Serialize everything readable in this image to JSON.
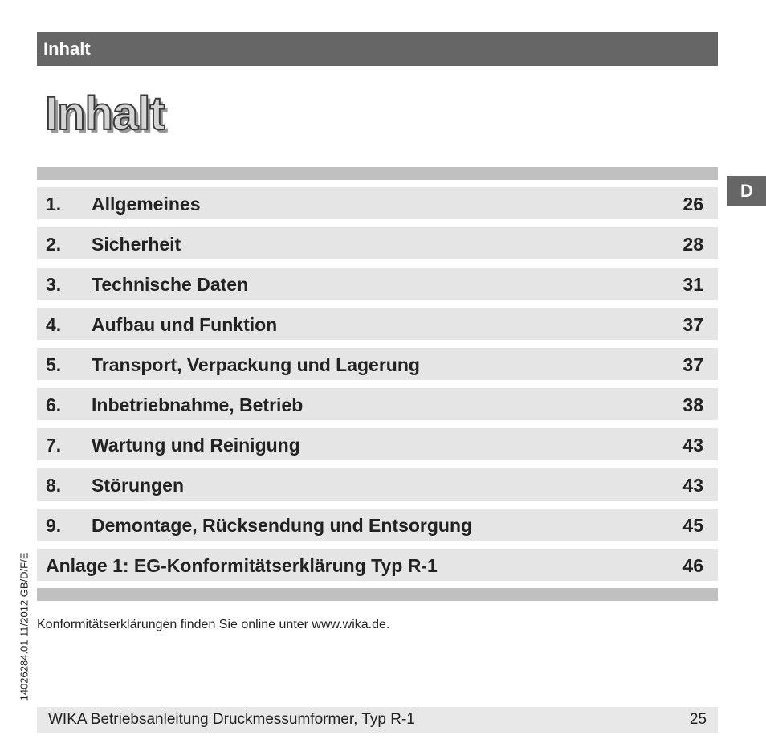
{
  "header": {
    "label": "Inhalt"
  },
  "page_title": "Inhalt",
  "language_tab": "D",
  "toc": [
    {
      "number": "1.",
      "title": "Allgemeines",
      "page": "26"
    },
    {
      "number": "2.",
      "title": "Sicherheit",
      "page": "28"
    },
    {
      "number": "3.",
      "title": "Technische Daten",
      "page": "31"
    },
    {
      "number": "4.",
      "title": "Aufbau und Funktion",
      "page": "37"
    },
    {
      "number": "5.",
      "title": "Transport, Verpackung und Lagerung",
      "page": "37"
    },
    {
      "number": "6.",
      "title": "Inbetriebnahme, Betrieb",
      "page": "38"
    },
    {
      "number": "7.",
      "title": "Wartung und Reinigung",
      "page": "43"
    },
    {
      "number": "8.",
      "title": "Störungen",
      "page": "43"
    },
    {
      "number": "9.",
      "title": "Demontage, Rücksendung und Entsorgung",
      "page": "45"
    }
  ],
  "annex": {
    "title": "Anlage 1: EG-Konformitätserklärung Typ R-1",
    "page": "46"
  },
  "note": "Konformitätserklärungen finden Sie online unter www.wika.de.",
  "side_code": "14026284.01 11/2012 GB/D/F/E",
  "footer": {
    "title": "WIKA Betriebsanleitung Druckmessumformer, Typ R-1",
    "page": "25"
  }
}
